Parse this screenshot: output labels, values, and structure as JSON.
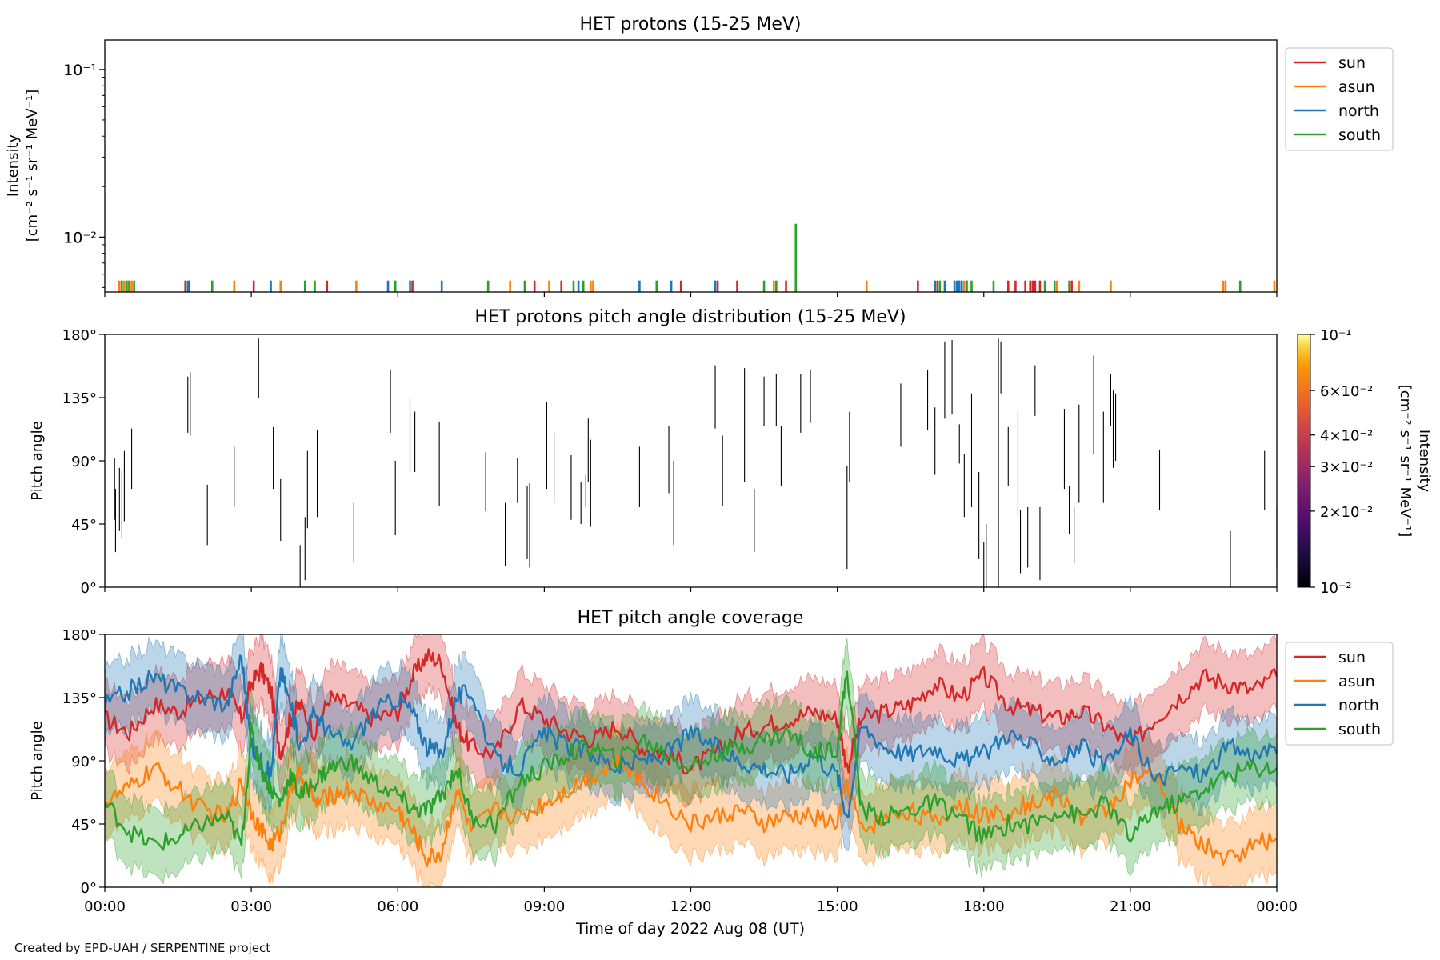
{
  "credit": "Created by EPD-UAH / SERPENTINE project",
  "xlabel": "Time of day 2022 Aug 08 (UT)",
  "x_ticks": [
    "00:00",
    "03:00",
    "06:00",
    "09:00",
    "12:00",
    "15:00",
    "18:00",
    "21:00",
    "00:00"
  ],
  "colors": {
    "sun": "#d62728",
    "asun": "#ff7f0e",
    "north": "#1f77b4",
    "south": "#2ca02c"
  },
  "chart_data": [
    {
      "type": "line",
      "title": "HET protons (15-25 MeV)",
      "ylabel_lines": [
        "Intensity",
        "[cm⁻² s⁻¹ sr⁻¹ MeV⁻¹]"
      ],
      "yscale": "log",
      "ylim": [
        0.0047,
        0.15
      ],
      "y_ticks": [
        {
          "value": 0.1,
          "label": "10⁻¹"
        },
        {
          "value": 0.01,
          "label": "10⁻²"
        }
      ],
      "xlim_hours": [
        0,
        24
      ],
      "legend_placement": "right, outside top",
      "baseline": 0.0055,
      "series": [
        {
          "name": "sun",
          "color": "#d62728",
          "x": [
            1.65,
            1.73,
            3.05,
            4.55,
            6.3,
            8.8,
            9.35,
            11.8,
            12.55,
            12.95,
            13.95,
            16.65,
            17.05,
            17.5,
            17.65,
            18.5,
            18.65,
            18.85,
            18.95,
            19.0,
            19.05,
            19.15,
            19.8
          ],
          "y": [
            0.0055,
            0.0055,
            0.0055,
            0.0055,
            0.0055,
            0.0055,
            0.0055,
            0.0055,
            0.0055,
            0.0055,
            0.0055,
            0.0055,
            0.0055,
            0.0055,
            0.0055,
            0.0055,
            0.0055,
            0.0055,
            0.0055,
            0.0055,
            0.0055,
            0.0055,
            0.0055
          ]
        },
        {
          "name": "asun",
          "color": "#ff7f0e",
          "x": [
            0.3,
            0.4,
            0.5,
            0.55,
            2.65,
            3.6,
            5.15,
            8.3,
            9.1,
            9.95,
            10.0,
            13.7,
            15.6,
            17.6,
            19.5,
            19.95,
            20.6,
            22.9,
            22.95,
            23.95
          ],
          "y": [
            0.0055,
            0.0055,
            0.0055,
            0.0055,
            0.0055,
            0.0055,
            0.0055,
            0.0055,
            0.0055,
            0.0055,
            0.0055,
            0.0055,
            0.0055,
            0.0055,
            0.0055,
            0.0055,
            0.0055,
            0.0055,
            0.0055,
            0.0055
          ]
        },
        {
          "name": "north",
          "color": "#1f77b4",
          "x": [
            1.7,
            3.4,
            5.8,
            6.25,
            6.9,
            9.7,
            10.95,
            11.6,
            12.5,
            17.0,
            17.2,
            17.4,
            17.45,
            17.5,
            17.55
          ],
          "y": [
            0.0055,
            0.0055,
            0.0055,
            0.0055,
            0.0055,
            0.0055,
            0.0055,
            0.0055,
            0.0055,
            0.0055,
            0.0055,
            0.0055,
            0.0055,
            0.0055,
            0.0055
          ]
        },
        {
          "name": "south",
          "color": "#2ca02c",
          "x": [
            0.35,
            0.45,
            0.5,
            0.6,
            2.2,
            4.1,
            4.3,
            5.95,
            7.85,
            8.6,
            9.6,
            9.8,
            11.3,
            13.5,
            13.75,
            14.15,
            17.1,
            17.65,
            17.75,
            18.2,
            19.25,
            19.45,
            19.75,
            23.25
          ],
          "y": [
            0.0055,
            0.0055,
            0.0055,
            0.0055,
            0.0055,
            0.0055,
            0.0055,
            0.0055,
            0.0055,
            0.0055,
            0.0055,
            0.0055,
            0.0055,
            0.0055,
            0.0055,
            0.012,
            0.0055,
            0.0055,
            0.0055,
            0.0055,
            0.0055,
            0.0055,
            0.0055,
            0.0055
          ]
        }
      ]
    },
    {
      "type": "heatmap",
      "title": "HET protons pitch angle distribution (15-25 MeV)",
      "ylabel": "Pitch angle",
      "ylim": [
        0,
        180
      ],
      "y_ticks": [
        {
          "value": 0,
          "label": "0°"
        },
        {
          "value": 45,
          "label": "45°"
        },
        {
          "value": 90,
          "label": "90°"
        },
        {
          "value": 135,
          "label": "135°"
        },
        {
          "value": 180,
          "label": "180°"
        }
      ],
      "colorbar": {
        "label_lines": [
          "Intensity",
          "[cm⁻² s⁻¹ sr⁻¹ MeV⁻¹]"
        ],
        "scale": "log",
        "range": [
          0.01,
          0.1
        ],
        "ticks": [
          {
            "value": 0.1,
            "label": "10⁻¹"
          },
          {
            "value": 0.06,
            "label": "6×10⁻²"
          },
          {
            "value": 0.04,
            "label": "4×10⁻²"
          },
          {
            "value": 0.03,
            "label": "3×10⁻²"
          },
          {
            "value": 0.02,
            "label": "2×10⁻²"
          },
          {
            "value": 0.01,
            "label": "10⁻²"
          }
        ]
      },
      "segments": [
        [
          0.2,
          48,
          92
        ],
        [
          0.22,
          25,
          70
        ],
        [
          0.3,
          40,
          85
        ],
        [
          0.35,
          35,
          83
        ],
        [
          0.4,
          47,
          97
        ],
        [
          0.55,
          70,
          113
        ],
        [
          1.7,
          110,
          150
        ],
        [
          1.75,
          108,
          153
        ],
        [
          2.1,
          30,
          73
        ],
        [
          2.65,
          57,
          100
        ],
        [
          3.15,
          135,
          177
        ],
        [
          3.45,
          70,
          114
        ],
        [
          3.6,
          33,
          77
        ],
        [
          4.0,
          0,
          30
        ],
        [
          4.1,
          5,
          50
        ],
        [
          4.15,
          42,
          97
        ],
        [
          4.35,
          50,
          112
        ],
        [
          5.1,
          18,
          60
        ],
        [
          5.85,
          110,
          155
        ],
        [
          5.95,
          37,
          90
        ],
        [
          6.25,
          82,
          135
        ],
        [
          6.35,
          82,
          125
        ],
        [
          6.85,
          58,
          118
        ],
        [
          7.8,
          54,
          96
        ],
        [
          8.2,
          15,
          60
        ],
        [
          8.45,
          60,
          92
        ],
        [
          8.65,
          20,
          72
        ],
        [
          8.7,
          14,
          74
        ],
        [
          9.05,
          70,
          132
        ],
        [
          9.2,
          60,
          110
        ],
        [
          9.55,
          48,
          94
        ],
        [
          9.75,
          45,
          75
        ],
        [
          9.85,
          57,
          80
        ],
        [
          9.9,
          75,
          120
        ],
        [
          9.95,
          43,
          105
        ],
        [
          10.95,
          57,
          100
        ],
        [
          11.55,
          67,
          115
        ],
        [
          11.65,
          30,
          90
        ],
        [
          12.5,
          113,
          158
        ],
        [
          12.65,
          58,
          108
        ],
        [
          13.1,
          75,
          156
        ],
        [
          13.3,
          25,
          70
        ],
        [
          13.5,
          115,
          150
        ],
        [
          13.75,
          115,
          152
        ],
        [
          13.85,
          72,
          115
        ],
        [
          14.25,
          110,
          152
        ],
        [
          14.45,
          117,
          155
        ],
        [
          15.2,
          13,
          86
        ],
        [
          15.25,
          75,
          125
        ],
        [
          16.3,
          100,
          145
        ],
        [
          16.85,
          112,
          155
        ],
        [
          17.0,
          80,
          128
        ],
        [
          17.2,
          120,
          175
        ],
        [
          17.35,
          123,
          176
        ],
        [
          17.5,
          88,
          116
        ],
        [
          17.6,
          50,
          95
        ],
        [
          17.75,
          57,
          138
        ],
        [
          17.9,
          20,
          82
        ],
        [
          18.0,
          0,
          32
        ],
        [
          18.05,
          0,
          45
        ],
        [
          18.3,
          0,
          177
        ],
        [
          18.35,
          138,
          175
        ],
        [
          18.5,
          72,
          114
        ],
        [
          18.7,
          50,
          125
        ],
        [
          18.75,
          10,
          55
        ],
        [
          18.9,
          14,
          57
        ],
        [
          19.05,
          122,
          158
        ],
        [
          19.15,
          5,
          57
        ],
        [
          19.65,
          70,
          127
        ],
        [
          19.75,
          38,
          72
        ],
        [
          19.85,
          17,
          57
        ],
        [
          19.95,
          60,
          130
        ],
        [
          20.25,
          95,
          165
        ],
        [
          20.45,
          60,
          125
        ],
        [
          20.6,
          115,
          152
        ],
        [
          20.65,
          85,
          140
        ],
        [
          20.7,
          90,
          138
        ],
        [
          21.6,
          55,
          98
        ],
        [
          23.05,
          0,
          40
        ],
        [
          23.75,
          55,
          97
        ],
        [
          24.0,
          12,
          57
        ]
      ]
    },
    {
      "type": "line",
      "title": "HET pitch angle coverage",
      "ylabel": "Pitch angle",
      "ylim": [
        0,
        180
      ],
      "y_ticks": [
        {
          "value": 0,
          "label": "0°"
        },
        {
          "value": 45,
          "label": "45°"
        },
        {
          "value": 90,
          "label": "90°"
        },
        {
          "value": 135,
          "label": "135°"
        },
        {
          "value": 180,
          "label": "180°"
        }
      ],
      "xlim_hours": [
        0,
        24
      ],
      "legend_placement": "right, outside top",
      "band_half_width_deg": 24,
      "x": [
        0,
        0.5,
        1,
        1.5,
        2,
        2.5,
        2.8,
        3.0,
        3.2,
        3.4,
        3.6,
        3.8,
        4.0,
        4.3,
        4.6,
        5.0,
        5.5,
        6.0,
        6.3,
        6.6,
        6.9,
        7.2,
        7.5,
        8.0,
        8.5,
        9.0,
        9.5,
        10.0,
        10.5,
        11.0,
        11.5,
        12.0,
        12.5,
        13.0,
        13.5,
        14.0,
        14.5,
        15.0,
        15.2,
        15.5,
        16.0,
        16.5,
        17.0,
        17.5,
        18.0,
        18.5,
        19.0,
        19.5,
        20.0,
        20.5,
        21.0,
        21.5,
        22.0,
        22.5,
        23.0,
        23.5,
        24.0
      ],
      "series": [
        {
          "name": "sun",
          "values": [
            120,
            110,
            130,
            125,
            135,
            140,
            120,
            145,
            155,
            140,
            95,
            120,
            130,
            110,
            135,
            130,
            120,
            125,
            150,
            165,
            160,
            115,
            100,
            95,
            130,
            120,
            110,
            105,
            115,
            100,
            95,
            85,
            95,
            110,
            115,
            120,
            125,
            120,
            85,
            120,
            125,
            130,
            145,
            135,
            150,
            130,
            125,
            120,
            125,
            115,
            100,
            120,
            135,
            150,
            145,
            140,
            150
          ]
        },
        {
          "name": "asun",
          "values": [
            60,
            70,
            85,
            70,
            55,
            50,
            75,
            55,
            40,
            30,
            40,
            70,
            80,
            60,
            65,
            70,
            60,
            55,
            40,
            20,
            25,
            70,
            40,
            55,
            50,
            60,
            70,
            80,
            90,
            75,
            60,
            45,
            50,
            55,
            45,
            50,
            50,
            45,
            75,
            40,
            50,
            55,
            45,
            60,
            50,
            55,
            60,
            65,
            50,
            55,
            75,
            80,
            45,
            30,
            20,
            30,
            35
          ]
        },
        {
          "name": "north",
          "values": [
            130,
            140,
            150,
            140,
            135,
            130,
            165,
            100,
            90,
            80,
            155,
            130,
            100,
            125,
            110,
            100,
            125,
            135,
            125,
            100,
            95,
            135,
            140,
            90,
            85,
            110,
            100,
            95,
            85,
            90,
            95,
            110,
            100,
            90,
            85,
            80,
            95,
            80,
            50,
            115,
            100,
            95,
            100,
            90,
            95,
            110,
            100,
            90,
            100,
            85,
            110,
            75,
            85,
            80,
            100,
            95,
            95
          ]
        },
        {
          "name": "south",
          "values": [
            60,
            40,
            30,
            35,
            45,
            50,
            30,
            110,
            85,
            70,
            60,
            80,
            65,
            75,
            85,
            90,
            75,
            65,
            55,
            55,
            65,
            85,
            50,
            45,
            75,
            85,
            95,
            100,
            90,
            105,
            95,
            85,
            95,
            100,
            105,
            110,
            95,
            100,
            155,
            55,
            50,
            55,
            60,
            50,
            35,
            45,
            45,
            55,
            50,
            60,
            35,
            55,
            60,
            70,
            80,
            85,
            85
          ]
        }
      ]
    }
  ]
}
